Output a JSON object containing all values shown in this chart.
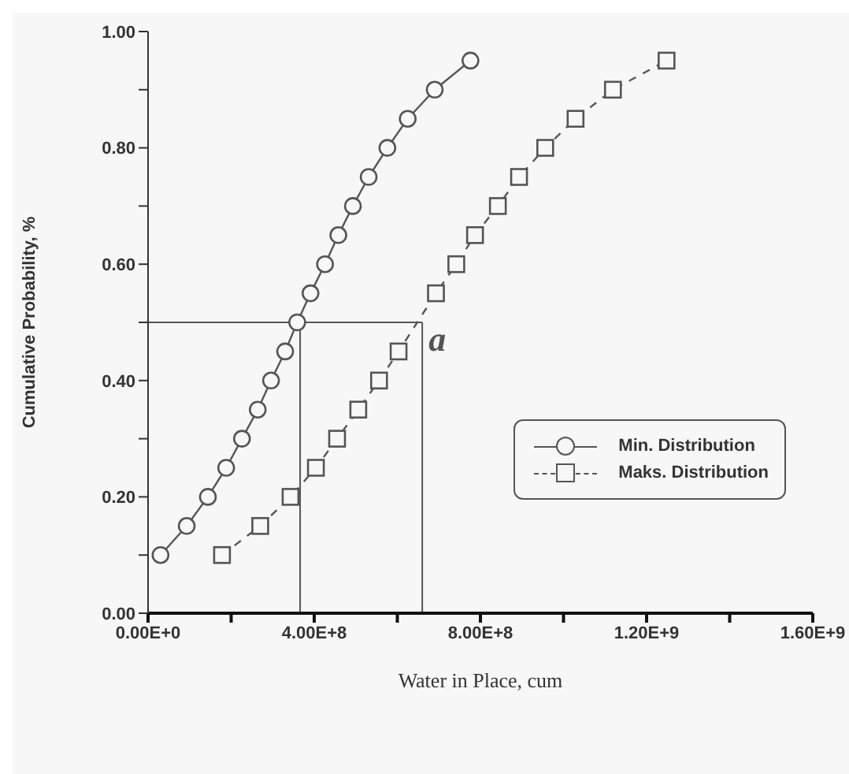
{
  "chart_data": {
    "type": "line",
    "xlabel": "Water in Place, cum",
    "ylabel": "Cumulative Probability, %",
    "xlim": [
      0,
      1600000000
    ],
    "ylim": [
      0,
      1
    ],
    "xticks": [
      {
        "value": 0,
        "label": "0.00E+0"
      },
      {
        "value": 200000000,
        "label": null
      },
      {
        "value": 400000000,
        "label": "4.00E+8"
      },
      {
        "value": 600000000,
        "label": null
      },
      {
        "value": 800000000,
        "label": "8.00E+8"
      },
      {
        "value": 1000000000,
        "label": null
      },
      {
        "value": 1200000000,
        "label": "1.20E+9"
      },
      {
        "value": 1400000000,
        "label": null
      },
      {
        "value": 1600000000,
        "label": "1.60E+9"
      }
    ],
    "yticks": [
      {
        "value": 0,
        "label": "0.00"
      },
      {
        "value": 0.1,
        "label": null
      },
      {
        "value": 0.2,
        "label": "0.20"
      },
      {
        "value": 0.3,
        "label": null
      },
      {
        "value": 0.4,
        "label": "0.40"
      },
      {
        "value": 0.5,
        "label": null
      },
      {
        "value": 0.6,
        "label": "0.60"
      },
      {
        "value": 0.7,
        "label": null
      },
      {
        "value": 0.8,
        "label": "0.80"
      },
      {
        "value": 0.9,
        "label": null
      },
      {
        "value": 1,
        "label": "1.00"
      }
    ],
    "legend": "right",
    "series": [
      {
        "name": "Min. Distribution",
        "color": "#555555",
        "marker": "circle",
        "line_style": "solid",
        "x": [
          30000000,
          93000000,
          144000000,
          188000000,
          226000000,
          264000000,
          296000000,
          330000000,
          359000000,
          391000000,
          426000000,
          458000000,
          493000000,
          531000000,
          576000000,
          625000000,
          690000000,
          776000000
        ],
        "values": [
          0.1,
          0.15,
          0.2,
          0.25,
          0.3,
          0.35,
          0.4,
          0.45,
          0.5,
          0.55,
          0.6,
          0.65,
          0.7,
          0.75,
          0.8,
          0.85,
          0.9,
          0.95
        ]
      },
      {
        "name": "Maks. Distribution",
        "color": "#555555",
        "marker": "square",
        "line_style": "dashed",
        "x": [
          178000000,
          270000000,
          343000000,
          404000000,
          455000000,
          506000000,
          556000000,
          603000000,
          693000000,
          742000000,
          787000000,
          842000000,
          893000000,
          956000000,
          1029000000,
          1119000000,
          1248000000
        ],
        "values": [
          0.1,
          0.15,
          0.2,
          0.25,
          0.3,
          0.35,
          0.4,
          0.45,
          0.55,
          0.6,
          0.65,
          0.7,
          0.75,
          0.8,
          0.85,
          0.9,
          0.95
        ]
      }
    ],
    "ref_lines": [
      {
        "axis": "y",
        "value": 0.5,
        "color": "#555555"
      },
      {
        "axis": "x",
        "value": 366000000,
        "color": "#555555"
      },
      {
        "axis": "x",
        "value": 660000000,
        "color": "#555555",
        "label": "a"
      }
    ]
  }
}
